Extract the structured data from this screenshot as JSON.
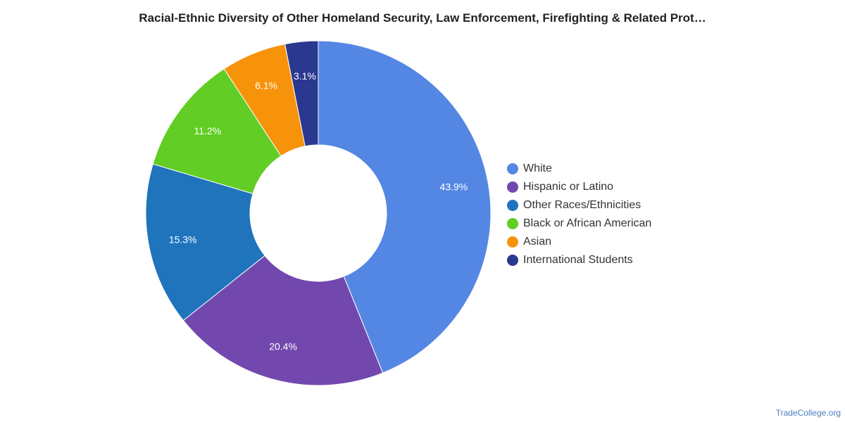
{
  "chart_data": {
    "type": "pie",
    "title": "Racial-Ethnic Diversity of Other Homeland Security, Law Enforcement, Firefighting & Related Prot…",
    "donut": true,
    "legend_position": "right",
    "categories": [
      "White",
      "Hispanic or Latino",
      "Other Races/Ethnicities",
      "Black or African American",
      "Asian",
      "International Students"
    ],
    "values": [
      43.9,
      20.4,
      15.3,
      11.2,
      6.1,
      3.1
    ],
    "value_labels": [
      "43.9%",
      "20.4%",
      "15.3%",
      "11.2%",
      "6.1%",
      "3.1%"
    ],
    "colors": [
      "#5487e3",
      "#7248af",
      "#1f74bc",
      "#62cd24",
      "#f7930a",
      "#2b388f"
    ]
  },
  "footer": {
    "source": "TradeCollege.org"
  }
}
